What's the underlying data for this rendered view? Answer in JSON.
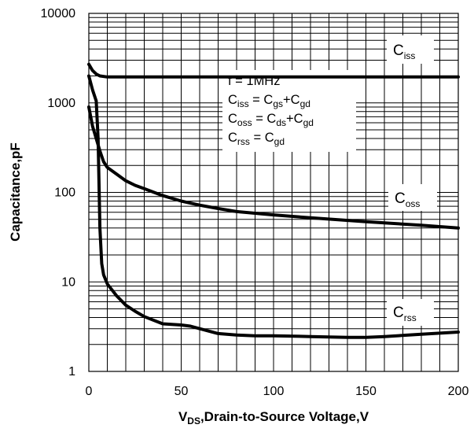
{
  "chart_data": {
    "type": "line",
    "title": "",
    "xlabel": {
      "main": "V",
      "sub": "DS",
      "rest": ",Drain-to-Source Voltage,V"
    },
    "ylabel": "Capacitance,pF",
    "xlim": [
      0,
      200
    ],
    "ylim": [
      1,
      10000
    ],
    "yscale": "log",
    "grid": true,
    "x_ticks": [
      "0",
      "50",
      "100",
      "150",
      "200"
    ],
    "y_ticks": [
      "1",
      "10",
      "100",
      "1000",
      "10000"
    ],
    "series": [
      {
        "name": "Ciss",
        "label": {
          "main": "C",
          "sub": "iss"
        },
        "x": [
          0,
          2,
          4,
          6,
          10,
          20,
          50,
          100,
          150,
          200
        ],
        "y": [
          2700,
          2300,
          2100,
          2000,
          1950,
          1950,
          1950,
          1950,
          1950,
          1950
        ]
      },
      {
        "name": "Coss",
        "label": {
          "main": "C",
          "sub": "oss"
        },
        "x": [
          0,
          2,
          4,
          6,
          8,
          10,
          15,
          20,
          25,
          30,
          40,
          50,
          60,
          70,
          80,
          100,
          120,
          150,
          180,
          200
        ],
        "y": [
          900,
          550,
          400,
          290,
          220,
          190,
          160,
          135,
          120,
          110,
          92,
          80,
          72,
          66,
          61,
          56,
          52,
          47,
          43,
          40
        ]
      },
      {
        "name": "Crss",
        "label": {
          "main": "C",
          "sub": "rss"
        },
        "x": [
          0,
          2,
          4,
          5,
          6,
          7,
          8,
          10,
          15,
          20,
          25,
          30,
          40,
          50,
          55,
          60,
          70,
          80,
          90,
          100,
          120,
          140,
          150,
          160,
          180,
          200
        ],
        "y": [
          2000,
          1400,
          1050,
          400,
          40,
          16,
          12,
          9.5,
          7,
          5.5,
          4.7,
          4.1,
          3.4,
          3.3,
          3.2,
          3.0,
          2.65,
          2.55,
          2.5,
          2.5,
          2.45,
          2.4,
          2.4,
          2.45,
          2.6,
          2.75
        ]
      }
    ],
    "annotation": [
      {
        "text": "f = 1MHz"
      },
      {
        "parts": [
          {
            "t": "C"
          },
          {
            "t": "iss",
            "s": true
          },
          {
            "t": " = C"
          },
          {
            "t": "gs",
            "s": true
          },
          {
            "t": "+C"
          },
          {
            "t": "gd",
            "s": true
          }
        ]
      },
      {
        "parts": [
          {
            "t": "C"
          },
          {
            "t": "oss",
            "s": true
          },
          {
            "t": " = C"
          },
          {
            "t": "ds",
            "s": true
          },
          {
            "t": "+C"
          },
          {
            "t": "gd",
            "s": true
          }
        ]
      },
      {
        "parts": [
          {
            "t": "C"
          },
          {
            "t": "rss",
            "s": true
          },
          {
            "t": " = C"
          },
          {
            "t": "gd",
            "s": true
          }
        ]
      }
    ]
  }
}
